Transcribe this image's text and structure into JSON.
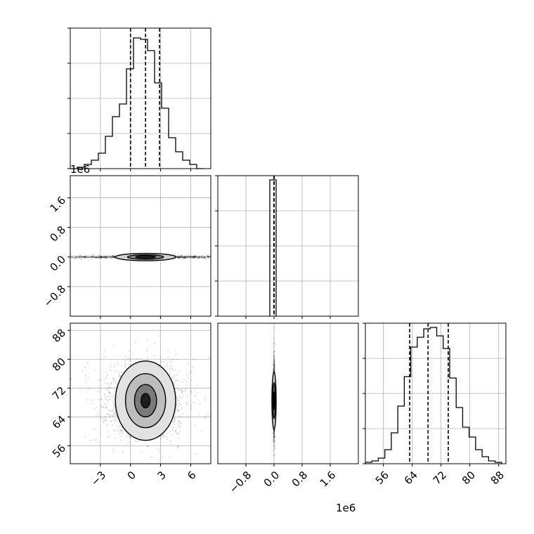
{
  "chart_data": {
    "type": "corner",
    "grid": true,
    "offset_texts": [
      "1e6",
      "1e6"
    ],
    "panels": [
      {
        "id": "p00",
        "type": "histogram",
        "x_range": [
          -6.0,
          8.0
        ],
        "x_ticks": [
          -3,
          0,
          3,
          6
        ],
        "y_range": [
          0,
          1
        ],
        "quantile_lines": [
          0.0,
          1.5,
          2.9
        ],
        "bins": [
          {
            "x0": -6.0,
            "x1": -5.3,
            "h": 0.0
          },
          {
            "x0": -5.3,
            "x1": -4.6,
            "h": 0.01
          },
          {
            "x0": -4.6,
            "x1": -3.9,
            "h": 0.03
          },
          {
            "x0": -3.9,
            "x1": -3.2,
            "h": 0.06
          },
          {
            "x0": -3.2,
            "x1": -2.5,
            "h": 0.11
          },
          {
            "x0": -2.5,
            "x1": -1.8,
            "h": 0.23
          },
          {
            "x0": -1.8,
            "x1": -1.1,
            "h": 0.37
          },
          {
            "x0": -1.1,
            "x1": -0.4,
            "h": 0.46
          },
          {
            "x0": -0.4,
            "x1": 0.3,
            "h": 0.71
          },
          {
            "x0": 0.3,
            "x1": 1.0,
            "h": 0.93
          },
          {
            "x0": 1.0,
            "x1": 1.7,
            "h": 0.92
          },
          {
            "x0": 1.7,
            "x1": 2.4,
            "h": 0.84
          },
          {
            "x0": 2.4,
            "x1": 3.1,
            "h": 0.61
          },
          {
            "x0": 3.1,
            "x1": 3.8,
            "h": 0.43
          },
          {
            "x0": 3.8,
            "x1": 4.5,
            "h": 0.22
          },
          {
            "x0": 4.5,
            "x1": 5.2,
            "h": 0.12
          },
          {
            "x0": 5.2,
            "x1": 5.9,
            "h": 0.06
          },
          {
            "x0": 5.9,
            "x1": 6.6,
            "h": 0.03
          },
          {
            "x0": 6.6,
            "x1": 7.3,
            "h": 0.0
          }
        ]
      },
      {
        "id": "p10",
        "type": "2d-density",
        "x_range": [
          -6.0,
          8.0
        ],
        "x_ticks": [
          -3,
          0,
          3,
          6
        ],
        "y_range": [
          -1.6,
          2.2
        ],
        "y_ticks": [
          "-0.8",
          "0.0",
          "0.8",
          "1.6"
        ],
        "y_tick_values": [
          -0.8,
          0.0,
          0.8,
          1.6
        ],
        "center": [
          1.5,
          0.0
        ],
        "spread": [
          4.0,
          0.02
        ],
        "contour_levels": [
          {
            "rx": 3.0,
            "ry": 0.1,
            "fill": "#d0d0d0"
          },
          {
            "rx": 1.8,
            "ry": 0.06,
            "fill": "#8c8c8c"
          },
          {
            "rx": 1.0,
            "ry": 0.03,
            "fill": "#2a2a2a"
          }
        ]
      },
      {
        "id": "p11",
        "type": "histogram",
        "x_range": [
          -1.6,
          2.4
        ],
        "x_ticks": [
          "-0.8",
          "0.0",
          "0.8",
          "1.6"
        ],
        "x_tick_values": [
          -0.8,
          0.0,
          0.8,
          1.6
        ],
        "y_range": [
          0,
          1
        ],
        "quantile_lines": [
          0.0,
          0.0,
          0.0
        ],
        "bins": [
          {
            "x0": -0.12,
            "x1": 0.06,
            "h": 0.97
          }
        ]
      },
      {
        "id": "p20",
        "type": "2d-density",
        "x_range": [
          -6.0,
          8.0
        ],
        "x_ticks": [
          -3,
          0,
          3,
          6
        ],
        "x_tick_labels": [
          "-3",
          "0",
          "3",
          "6"
        ],
        "y_range": [
          51,
          90
        ],
        "y_ticks": [
          "56",
          "64",
          "72",
          "80",
          "88"
        ],
        "y_tick_values": [
          56,
          64,
          72,
          80,
          88
        ],
        "center": [
          1.5,
          68.5
        ],
        "spread": [
          2.2,
          5.5
        ],
        "contour_levels": [
          {
            "rx": 3.0,
            "ry": 11.0,
            "fill": "#e2e2e2"
          },
          {
            "rx": 2.0,
            "ry": 7.5,
            "fill": "#bdbdbd"
          },
          {
            "rx": 1.1,
            "ry": 4.5,
            "fill": "#7a7a7a"
          },
          {
            "rx": 0.45,
            "ry": 2.0,
            "fill": "#1e1e1e"
          }
        ]
      },
      {
        "id": "p21",
        "type": "2d-density",
        "x_range": [
          -1.6,
          2.4
        ],
        "x_ticks": [
          "-0.8",
          "0.0",
          "0.8",
          "1.6"
        ],
        "x_tick_values": [
          -0.8,
          0.0,
          0.8,
          1.6
        ],
        "y_range": [
          51,
          90
        ],
        "center": [
          0.0,
          68.5
        ],
        "spread": [
          0.01,
          5.5
        ],
        "contour_levels": [
          {
            "rx": 0.06,
            "ry": 8.0,
            "fill": "#cfcfcf"
          },
          {
            "rx": 0.035,
            "ry": 5.0,
            "fill": "#8c8c8c"
          },
          {
            "rx": 0.015,
            "ry": 2.5,
            "fill": "#2a2a2a"
          }
        ]
      },
      {
        "id": "p22",
        "type": "histogram",
        "x_range": [
          51,
          90
        ],
        "x_ticks": [
          "56",
          "64",
          "72",
          "80",
          "88"
        ],
        "x_tick_values": [
          56,
          64,
          72,
          80,
          88
        ],
        "y_range": [
          0,
          1
        ],
        "quantile_lines": [
          63.3,
          68.4,
          74.0
        ],
        "bins": [
          {
            "x0": 51.0,
            "x1": 52.8,
            "h": 0.01
          },
          {
            "x0": 52.8,
            "x1": 54.6,
            "h": 0.02
          },
          {
            "x0": 54.6,
            "x1": 56.4,
            "h": 0.04
          },
          {
            "x0": 56.4,
            "x1": 58.2,
            "h": 0.1
          },
          {
            "x0": 58.2,
            "x1": 60.0,
            "h": 0.22
          },
          {
            "x0": 60.0,
            "x1": 61.8,
            "h": 0.41
          },
          {
            "x0": 61.8,
            "x1": 63.6,
            "h": 0.62
          },
          {
            "x0": 63.6,
            "x1": 65.4,
            "h": 0.83
          },
          {
            "x0": 65.4,
            "x1": 67.2,
            "h": 0.9
          },
          {
            "x0": 67.2,
            "x1": 69.0,
            "h": 0.96
          },
          {
            "x0": 69.0,
            "x1": 70.8,
            "h": 0.97
          },
          {
            "x0": 70.8,
            "x1": 72.6,
            "h": 0.91
          },
          {
            "x0": 72.6,
            "x1": 74.4,
            "h": 0.82
          },
          {
            "x0": 74.4,
            "x1": 76.2,
            "h": 0.61
          },
          {
            "x0": 76.2,
            "x1": 78.0,
            "h": 0.4
          },
          {
            "x0": 78.0,
            "x1": 79.8,
            "h": 0.26
          },
          {
            "x0": 79.8,
            "x1": 81.6,
            "h": 0.19
          },
          {
            "x0": 81.6,
            "x1": 83.4,
            "h": 0.1
          },
          {
            "x0": 83.4,
            "x1": 85.2,
            "h": 0.05
          },
          {
            "x0": 85.2,
            "x1": 87.0,
            "h": 0.02
          },
          {
            "x0": 87.0,
            "x1": 88.8,
            "h": 0.01
          }
        ]
      }
    ]
  }
}
